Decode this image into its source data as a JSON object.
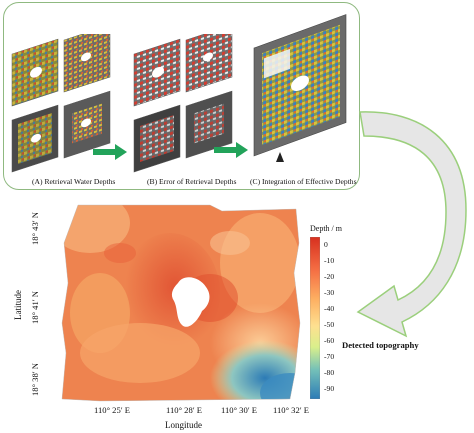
{
  "panels": {
    "a_caption": "(A) Retrieval Water Depths",
    "b_caption": "(B) Error of Retrieval Depths",
    "c_caption": "(C) Integration of Effective Depths"
  },
  "main_map": {
    "y_axis_title": "Latitude",
    "x_axis_title": "Longitude",
    "y_ticks": [
      "18° 43′ N",
      "18° 41′ N",
      "18° 38′ N"
    ],
    "x_ticks": [
      "110° 25′ E",
      "110° 28′ E",
      "110° 30′ E",
      "110° 32′ E"
    ],
    "legend_title": "Depth / m",
    "legend_ticks": [
      "0",
      "-10",
      "-20",
      "-30",
      "-40",
      "-50",
      "-60",
      "-70",
      "-80",
      "-90"
    ],
    "result_label": "Detected topography"
  },
  "colors": {
    "frame": "#8fb980",
    "arrow_green": "#22a35a",
    "curved_arrow_fill": "#e6e6e6",
    "curved_arrow_stroke": "#9bcf7c",
    "depth_shallow": "#d7301f",
    "depth_mid": "#f4a261",
    "depth_deep": "#2c7bb6"
  }
}
